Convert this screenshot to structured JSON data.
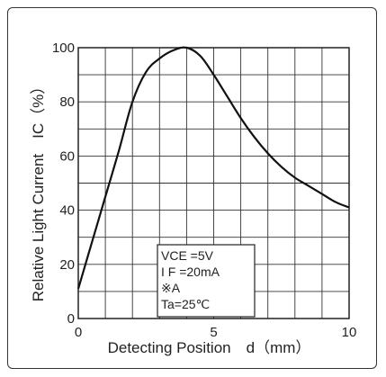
{
  "chart_data": {
    "type": "line",
    "xlabel": "Detecting Position　d（mm）",
    "ylabel": "Relative Light Current　IC（%）",
    "xlim": [
      0,
      10
    ],
    "ylim": [
      0,
      100
    ],
    "x_ticks": [
      "0",
      "5",
      "10"
    ],
    "y_ticks": [
      "0",
      "20",
      "40",
      "60",
      "80",
      "100"
    ],
    "grid": true,
    "series": [
      {
        "x": [
          0,
          0.5,
          1,
          1.5,
          2,
          2.5,
          3,
          3.5,
          4,
          4.5,
          5,
          5.5,
          6,
          6.5,
          7,
          7.5,
          8,
          8.5,
          9,
          9.5,
          10
        ],
        "values": [
          11,
          28,
          45,
          62,
          80,
          91,
          96,
          99,
          100,
          97,
          90,
          82,
          74,
          67,
          61,
          56,
          52,
          49,
          46,
          43,
          41
        ]
      }
    ],
    "annotation": {
      "lines": [
        "VCE =5V",
        "I F =20mA",
        "※A",
        "Ta=25℃"
      ]
    }
  }
}
